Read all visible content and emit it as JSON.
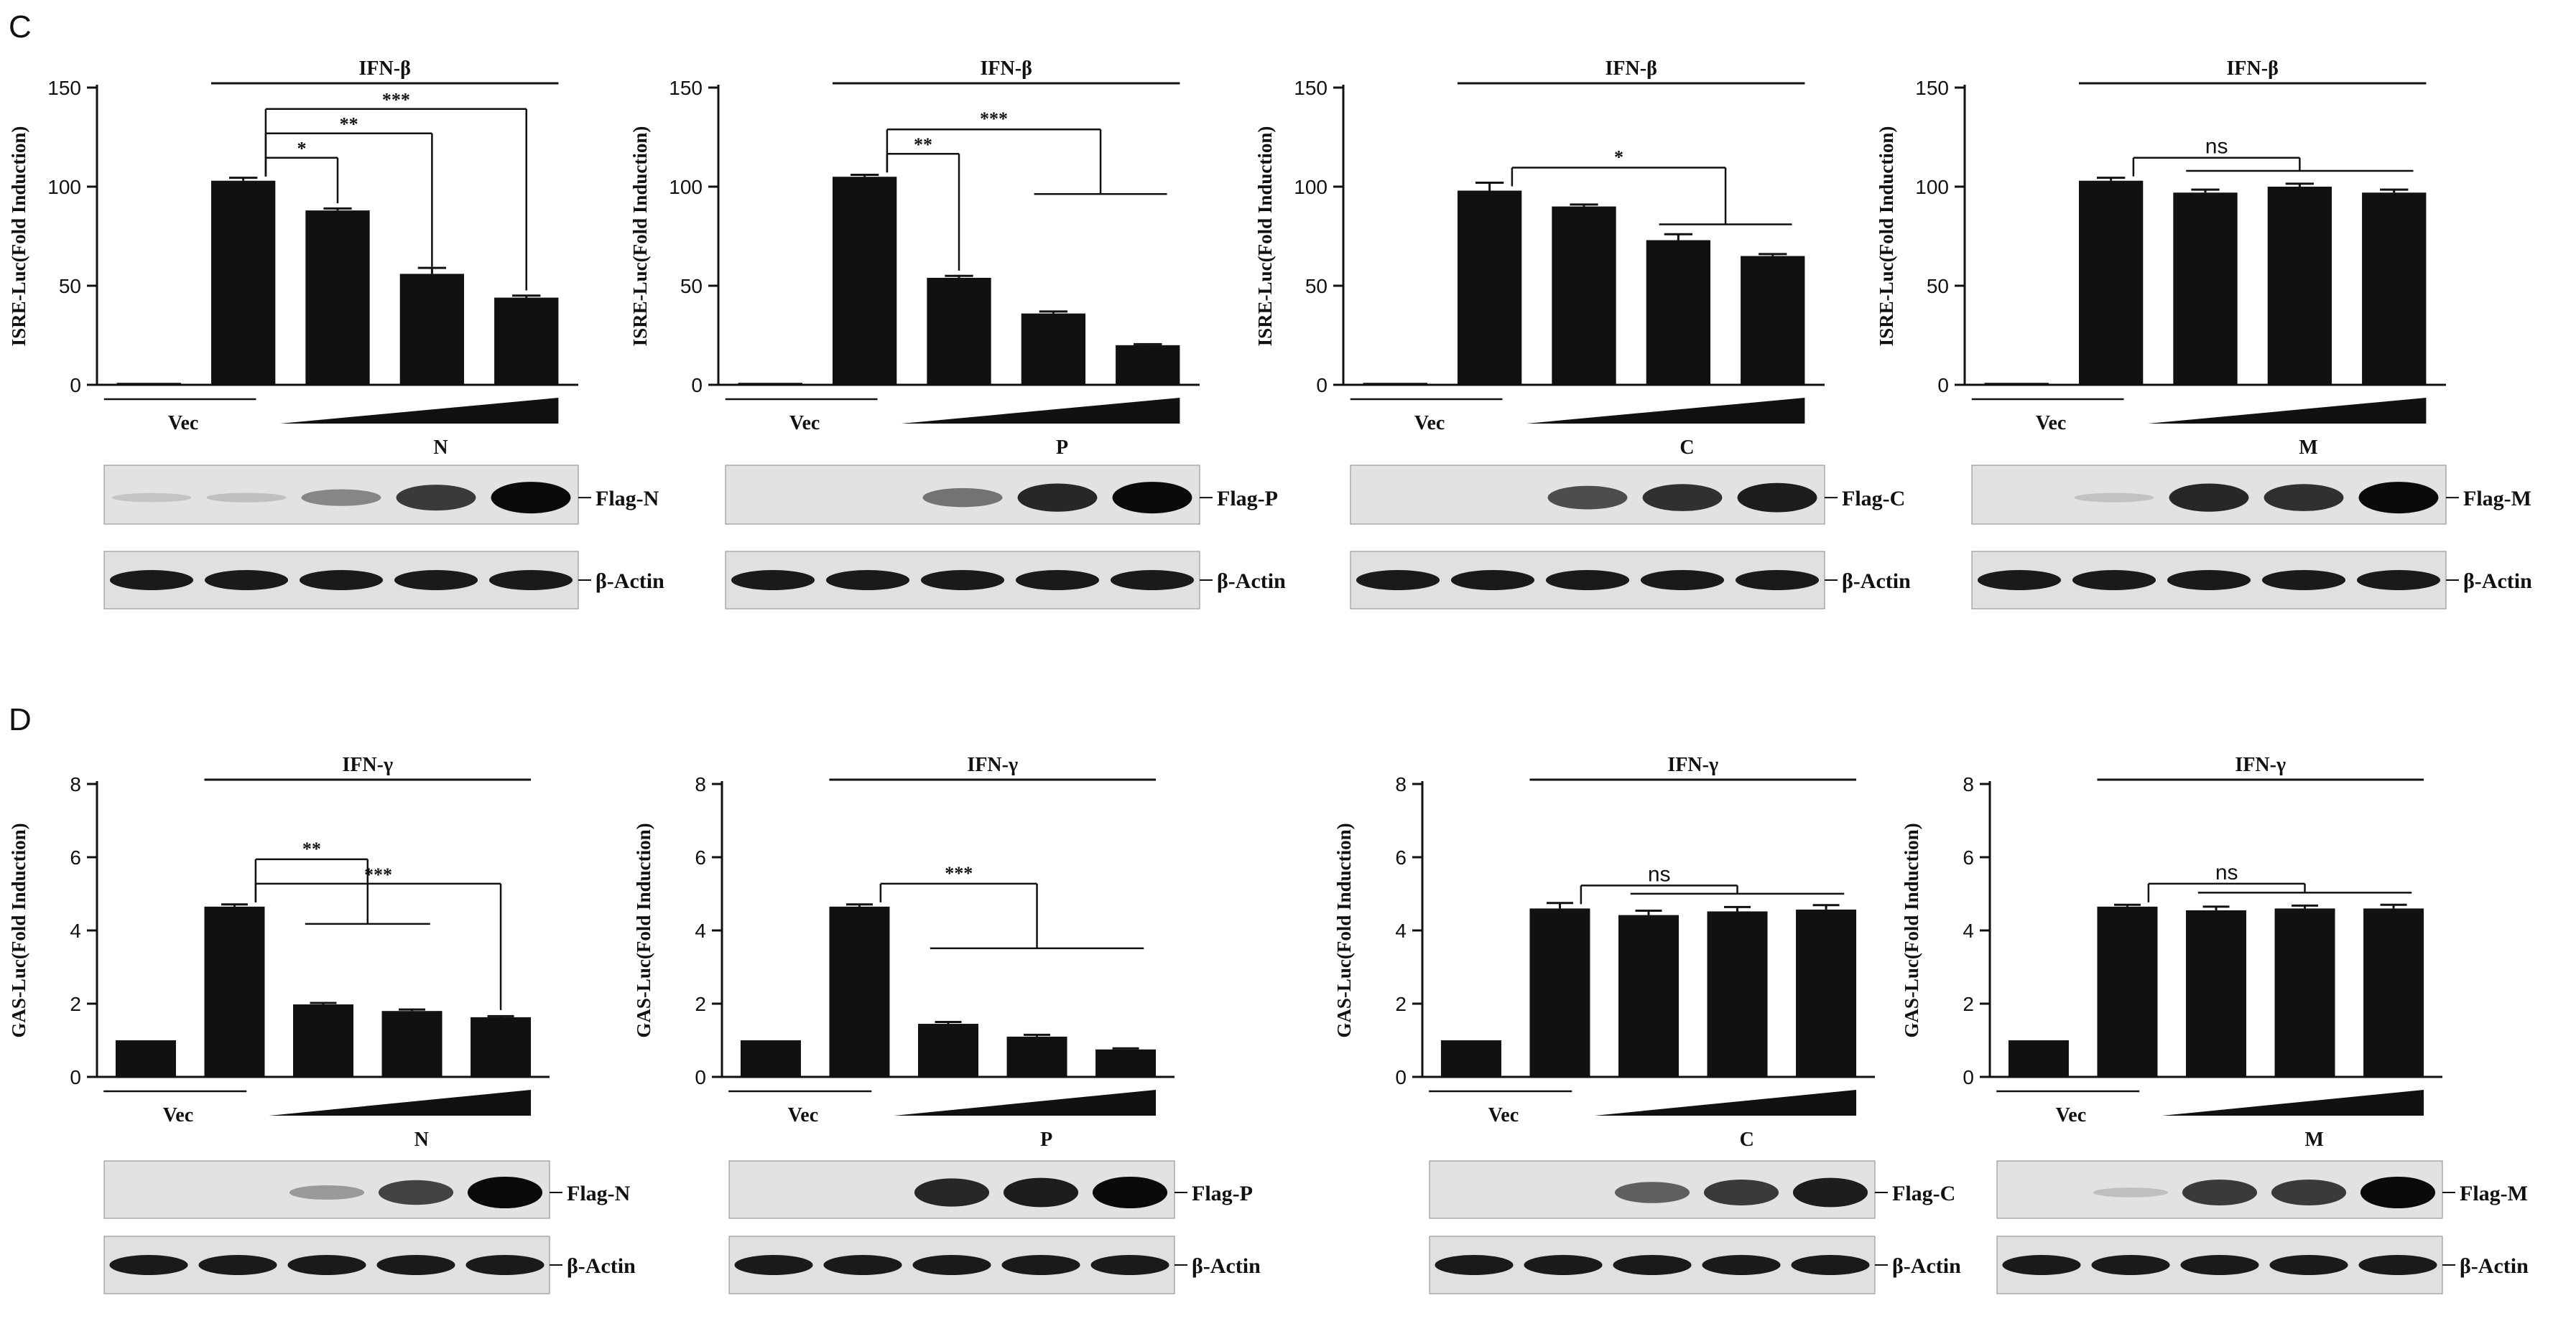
{
  "sections": [
    {
      "letter": "C",
      "panels": [
        {
          "ylabel": "ISRE-Luc(Fold Induction)",
          "treatment": "IFN-β",
          "protein": "N",
          "vec_label": "Vec",
          "flag_label": "Flag-N",
          "actin_label": "β-Actin",
          "ylim": [
            0,
            150
          ],
          "yticks": [
            "0",
            "50",
            "100",
            "150"
          ],
          "values": [
            1,
            103,
            88,
            56,
            44
          ],
          "errors": [
            0,
            1.5,
            1,
            3,
            1
          ],
          "flag_intensity": [
            0.02,
            0.04,
            0.35,
            0.75,
            1.0
          ],
          "sig": [
            {
              "to": 2,
              "label": "*"
            },
            {
              "to": 3,
              "label": "**"
            },
            {
              "to": 4,
              "label": "***"
            }
          ],
          "sig_group": null
        },
        {
          "ylabel": "ISRE-Luc(Fold Induction)",
          "treatment": "IFN-β",
          "protein": "P",
          "vec_label": "Vec",
          "flag_label": "Flag-P",
          "actin_label": "β-Actin",
          "ylim": [
            0,
            150
          ],
          "yticks": [
            "0",
            "50",
            "100",
            "150"
          ],
          "values": [
            1,
            105,
            54,
            36,
            20
          ],
          "errors": [
            0,
            1,
            1,
            1,
            0.5
          ],
          "flag_intensity": [
            0,
            0,
            0.45,
            0.85,
            1.0
          ],
          "sig": [
            {
              "to": 2,
              "label": "**"
            }
          ],
          "sig_group": {
            "label": "***",
            "from": 3,
            "to": 4
          }
        },
        {
          "ylabel": "ISRE-Luc(Fold Induction)",
          "treatment": "IFN-β",
          "protein": "C",
          "vec_label": "Vec",
          "flag_label": "Flag-C",
          "actin_label": "β-Actin",
          "ylim": [
            0,
            150
          ],
          "yticks": [
            "0",
            "50",
            "100",
            "150"
          ],
          "values": [
            1,
            98,
            90,
            73,
            65
          ],
          "errors": [
            0,
            4,
            1,
            3,
            1
          ],
          "flag_intensity": [
            0,
            0,
            0.65,
            0.8,
            0.9
          ],
          "sig": [],
          "sig_group": {
            "label": "*",
            "from": 3,
            "to": 4
          }
        },
        {
          "ylabel": "ISRE-Luc(Fold Induction)",
          "treatment": "IFN-β",
          "protein": "M",
          "vec_label": "Vec",
          "flag_label": "Flag-M",
          "actin_label": "β-Actin",
          "ylim": [
            0,
            150
          ],
          "yticks": [
            "0",
            "50",
            "100",
            "150"
          ],
          "values": [
            1,
            103,
            97,
            100,
            97
          ],
          "errors": [
            0,
            1.5,
            1.5,
            1.5,
            1.5
          ],
          "flag_intensity": [
            0,
            0.03,
            0.85,
            0.8,
            1.0
          ],
          "sig": [],
          "sig_group": {
            "label": "ns",
            "from": 2,
            "to": 4
          }
        }
      ]
    },
    {
      "letter": "D",
      "panels": [
        {
          "ylabel": "GAS-Luc(Fold Induction)",
          "treatment": "IFN-γ",
          "protein": "N",
          "vec_label": "Vec",
          "flag_label": "Flag-N",
          "actin_label": "β-Actin",
          "ylim": [
            0,
            8
          ],
          "yticks": [
            "0",
            "2",
            "4",
            "6",
            "8"
          ],
          "values": [
            1,
            4.65,
            1.98,
            1.8,
            1.63
          ],
          "errors": [
            0,
            0.06,
            0.04,
            0.04,
            0.03
          ],
          "flag_intensity": [
            0,
            0,
            0.25,
            0.7,
            1.0
          ],
          "sig": [
            {
              "to": 4,
              "label": "***"
            }
          ],
          "sig_group": {
            "label": "**",
            "from": 2,
            "to": 3
          }
        },
        {
          "ylabel": "GAS-Luc(Fold Induction)",
          "treatment": "IFN-γ",
          "protein": "P",
          "vec_label": "Vec",
          "flag_label": "Flag-P",
          "actin_label": "β-Actin",
          "ylim": [
            0,
            8
          ],
          "yticks": [
            "0",
            "2",
            "4",
            "6",
            "8"
          ],
          "values": [
            1,
            4.65,
            1.45,
            1.1,
            0.75
          ],
          "errors": [
            0,
            0.06,
            0.05,
            0.05,
            0.03
          ],
          "flag_intensity": [
            0,
            0,
            0.85,
            0.9,
            1.0
          ],
          "sig": [],
          "sig_group": {
            "label": "***",
            "from": 2,
            "to": 4
          }
        },
        {
          "ylabel": "GAS-Luc(Fold Induction)",
          "treatment": "IFN-γ",
          "protein": "C",
          "vec_label": "Vec",
          "flag_label": "Flag-C",
          "actin_label": "β-Actin",
          "ylim": [
            0,
            8
          ],
          "yticks": [
            "0",
            "2",
            "4",
            "6",
            "8"
          ],
          "values": [
            1,
            4.6,
            4.42,
            4.52,
            4.57
          ],
          "errors": [
            0,
            0.15,
            0.12,
            0.12,
            0.12
          ],
          "flag_intensity": [
            0,
            0,
            0.55,
            0.75,
            0.9
          ],
          "sig": [],
          "sig_group": {
            "label": "ns",
            "from": 2,
            "to": 4
          }
        },
        {
          "ylabel": "GAS-Luc(Fold Induction)",
          "treatment": "IFN-γ",
          "protein": "M",
          "vec_label": "Vec",
          "flag_label": "Flag-M",
          "actin_label": "β-Actin",
          "ylim": [
            0,
            8
          ],
          "yticks": [
            "0",
            "2",
            "4",
            "6",
            "8"
          ],
          "values": [
            1,
            4.65,
            4.55,
            4.6,
            4.6
          ],
          "errors": [
            0,
            0.05,
            0.1,
            0.08,
            0.1
          ],
          "flag_intensity": [
            0,
            0.05,
            0.75,
            0.75,
            1.0
          ],
          "sig": [],
          "sig_group": {
            "label": "ns",
            "from": 2,
            "to": 4
          }
        }
      ]
    }
  ],
  "chart_data": [
    {
      "type": "bar",
      "section": "C",
      "panel": 1,
      "ylabel": "ISRE-Luc(Fold Induction)",
      "ylim": [
        0,
        150
      ],
      "series": [
        {
          "values": [
            1,
            103,
            88,
            56,
            44
          ]
        }
      ]
    },
    {
      "type": "bar",
      "section": "C",
      "panel": 2,
      "ylabel": "ISRE-Luc(Fold Induction)",
      "ylim": [
        0,
        150
      ],
      "series": [
        {
          "values": [
            1,
            105,
            54,
            36,
            20
          ]
        }
      ]
    },
    {
      "type": "bar",
      "section": "C",
      "panel": 3,
      "ylabel": "ISRE-Luc(Fold Induction)",
      "ylim": [
        0,
        150
      ],
      "series": [
        {
          "values": [
            1,
            98,
            90,
            73,
            65
          ]
        }
      ]
    },
    {
      "type": "bar",
      "section": "C",
      "panel": 4,
      "ylabel": "ISRE-Luc(Fold Induction)",
      "ylim": [
        0,
        150
      ],
      "series": [
        {
          "values": [
            1,
            103,
            97,
            100,
            97
          ]
        }
      ]
    },
    {
      "type": "bar",
      "section": "D",
      "panel": 1,
      "ylabel": "GAS-Luc(Fold Induction)",
      "ylim": [
        0,
        8
      ],
      "series": [
        {
          "values": [
            1,
            4.65,
            1.98,
            1.8,
            1.63
          ]
        }
      ]
    },
    {
      "type": "bar",
      "section": "D",
      "panel": 2,
      "ylabel": "GAS-Luc(Fold Induction)",
      "ylim": [
        0,
        8
      ],
      "series": [
        {
          "values": [
            1,
            4.65,
            1.45,
            1.1,
            0.75
          ]
        }
      ]
    },
    {
      "type": "bar",
      "section": "D",
      "panel": 3,
      "ylabel": "GAS-Luc(Fold Induction)",
      "ylim": [
        0,
        8
      ],
      "series": [
        {
          "values": [
            1,
            4.6,
            4.42,
            4.52,
            4.57
          ]
        }
      ]
    },
    {
      "type": "bar",
      "section": "D",
      "panel": 4,
      "ylabel": "GAS-Luc(Fold Induction)",
      "ylim": [
        0,
        8
      ],
      "series": [
        {
          "values": [
            1,
            4.65,
            4.55,
            4.6,
            4.6
          ]
        }
      ]
    }
  ]
}
